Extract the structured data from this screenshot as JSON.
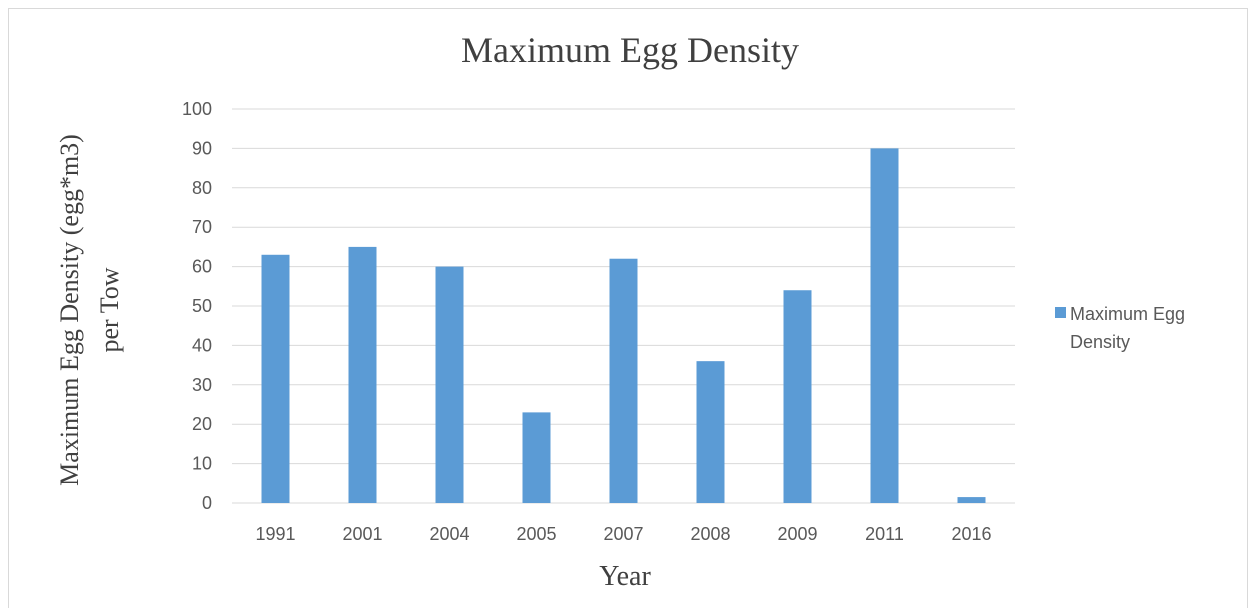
{
  "chart_data": {
    "type": "bar",
    "title": "Maximum Egg Density",
    "xlabel": "Year",
    "ylabel_lines": [
      "Maximum Egg Density (egg*m3)",
      "per Tow"
    ],
    "categories": [
      "1991",
      "2001",
      "2004",
      "2005",
      "2007",
      "2008",
      "2009",
      "2011",
      "2016"
    ],
    "series": [
      {
        "name": "Maximum Egg Density",
        "legend_lines": [
          "Maximum Egg",
          "Density"
        ],
        "values": [
          63,
          65,
          60,
          23,
          62,
          36,
          54,
          90,
          1.5
        ],
        "color": "#5b9bd5"
      }
    ],
    "ylim": [
      0,
      100
    ],
    "yticks": [
      "0",
      "10",
      "20",
      "30",
      "40",
      "50",
      "60",
      "70",
      "80",
      "90",
      "100"
    ],
    "grid": true,
    "legend_position": "right"
  }
}
